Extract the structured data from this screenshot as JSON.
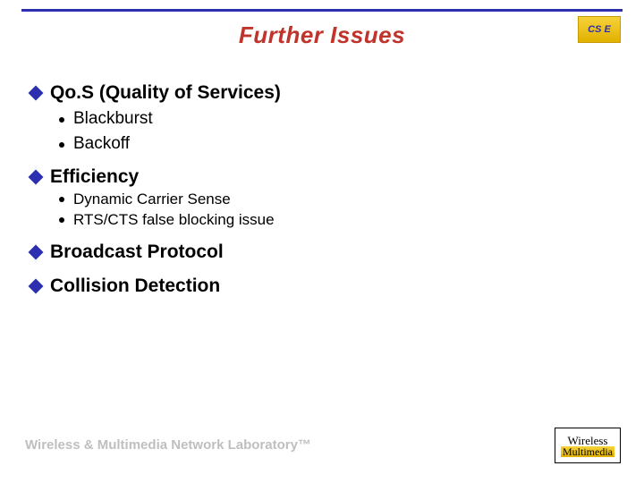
{
  "title": {
    "text": "Further Issues",
    "color": "#c0342b"
  },
  "accent_color": "#2b2fb0",
  "logo_top": {
    "text": "CS E"
  },
  "bullets": [
    {
      "text": "Qo.S (Quality of Services)",
      "sub": [
        {
          "text": "Blackburst",
          "size": "normal"
        },
        {
          "text": "Backoff",
          "size": "normal"
        }
      ]
    },
    {
      "text": "Efficiency",
      "sub": [
        {
          "text": "Dynamic Carrier Sense",
          "size": "small"
        },
        {
          "text": "RTS/CTS false blocking issue",
          "size": "small"
        }
      ]
    },
    {
      "text": "Broadcast Protocol",
      "sub": []
    },
    {
      "text": "Collision Detection",
      "sub": []
    }
  ],
  "footer": {
    "text": "Wireless & Multimedia Network Laboratory™"
  },
  "logo_bottom": {
    "line1": "Wireless",
    "line2": "Multimedia"
  }
}
